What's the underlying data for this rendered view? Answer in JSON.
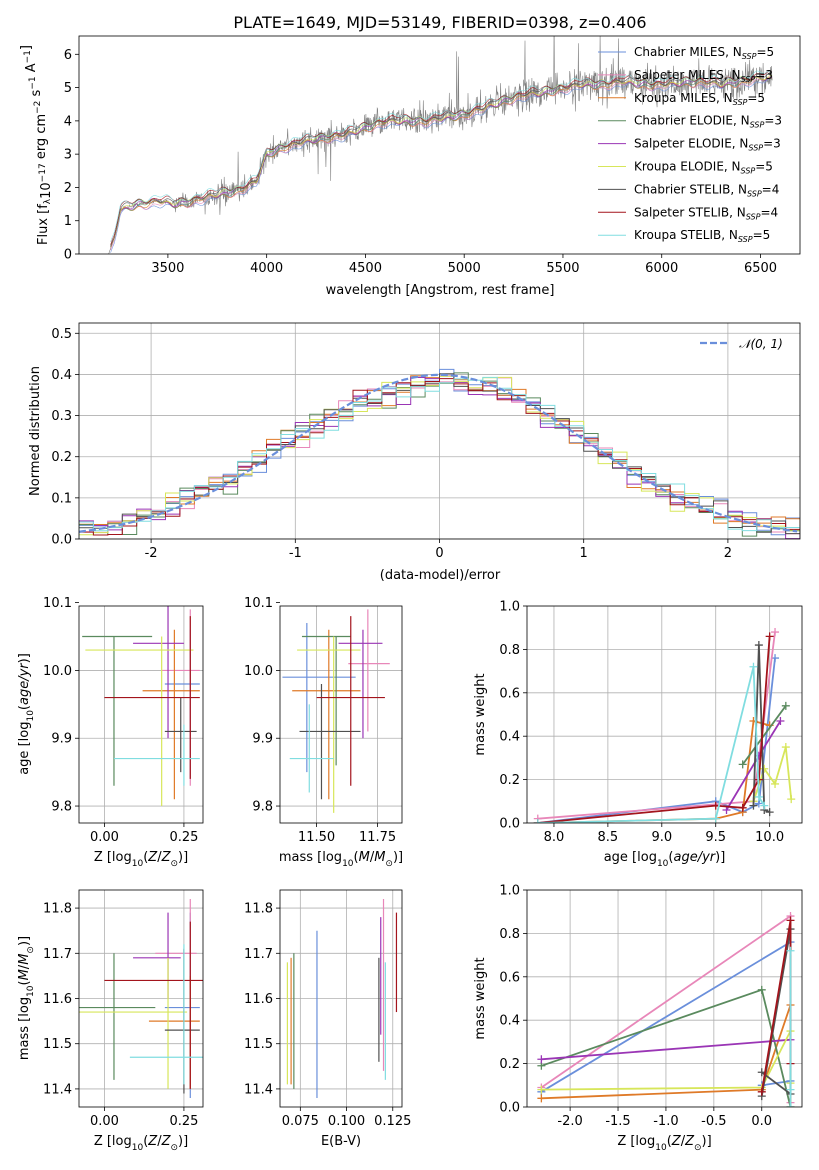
{
  "figure_title": "PLATE=1649, MJD=53149, FIBERID=0398, z=0.406",
  "colors": {
    "Chabrier MILES": "#6a8fdb",
    "Salpeter MILES": "#e887b9",
    "Kroupa MILES": "#df7a28",
    "Chabrier ELODIE": "#5a8a5e",
    "Salpeter ELODIE": "#9a35b5",
    "Kroupa ELODIE": "#d7e65a",
    "Chabrier STELIB": "#505050",
    "Salpeter STELIB": "#a3141c",
    "Kroupa STELIB": "#80dde0",
    "data": "#808080"
  },
  "chart_data": [
    {
      "id": "spectrum",
      "type": "line",
      "title": "PLATE=1649, MJD=53149, FIBERID=0398, z=0.406",
      "xlabel": "wavelength [Angstrom, rest frame]",
      "ylabel": "Flux [f_λ 10^-17 erg cm^-2 s^-1 A^-1]",
      "ylabel_parts": [
        "Flux [f",
        "λ",
        "10",
        "−17",
        " erg cm",
        "−2",
        " s",
        "−1",
        " A",
        "−1",
        "]"
      ],
      "xlim": [
        3050,
        6700
      ],
      "ylim": [
        0,
        6.55
      ],
      "xticks": [
        3500,
        4000,
        4500,
        5000,
        5500,
        6000,
        6500
      ],
      "yticks": [
        0,
        1,
        2,
        3,
        4,
        5,
        6
      ],
      "legend": {
        "position": "top-right",
        "entries": [
          {
            "label": "Chabrier MILES, N",
            "sub": "SSP",
            "tail": "=5"
          },
          {
            "label": "Salpeter MILES, N",
            "sub": "SSP",
            "tail": "=3"
          },
          {
            "label": "Kroupa MILES, N",
            "sub": "SSP",
            "tail": "=5"
          },
          {
            "label": "Chabrier ELODIE, N",
            "sub": "SSP",
            "tail": "=3"
          },
          {
            "label": "Salpeter ELODIE, N",
            "sub": "SSP",
            "tail": "=3"
          },
          {
            "label": "Kroupa ELODIE, N",
            "sub": "SSP",
            "tail": "=5"
          },
          {
            "label": "Chabrier STELIB, N",
            "sub": "SSP",
            "tail": "=4"
          },
          {
            "label": "Salpeter STELIB, N",
            "sub": "SSP",
            "tail": "=4"
          },
          {
            "label": "Kroupa STELIB, N",
            "sub": "SSP",
            "tail": "=5"
          }
        ]
      },
      "continuum": {
        "x": [
          3200,
          3230,
          3260,
          3350,
          3450,
          3550,
          3650,
          3750,
          3850,
          3950,
          4000,
          4100,
          4200,
          4300,
          4400,
          4500,
          4600,
          4700,
          4800,
          4900,
          5000,
          5100,
          5200,
          5300,
          5400,
          5500,
          5600,
          5700,
          5800,
          5900,
          6000,
          6100,
          6200,
          6300,
          6400,
          6500
        ],
        "y": [
          0,
          0.5,
          1.35,
          1.5,
          1.6,
          1.5,
          1.65,
          1.8,
          1.9,
          2.2,
          3.0,
          3.25,
          3.4,
          3.5,
          3.6,
          3.8,
          4.0,
          4.0,
          4.0,
          4.1,
          4.2,
          4.4,
          4.6,
          4.8,
          4.85,
          5.0,
          5.1,
          5.1,
          5.2,
          5.1,
          5.1,
          5.15,
          5.2,
          5.1,
          5.2,
          5.3
        ]
      },
      "data_range": [
        3200,
        6560
      ],
      "noisy_from": 3530
    },
    {
      "id": "residuals",
      "type": "histogram",
      "xlabel": "(data-model)/error",
      "ylabel": "Normed distribution",
      "xlim": [
        -2.5,
        2.5
      ],
      "ylim": [
        0,
        0.525
      ],
      "xticks": [
        -2,
        -1,
        0,
        1,
        2
      ],
      "yticks": [
        0.0,
        0.1,
        0.2,
        0.3,
        0.4,
        0.5
      ],
      "legend": {
        "position": "top-right",
        "label": "N(0, 1)",
        "label_display": "𝒩(0, 1)"
      },
      "gaussian": {
        "mean": 0,
        "sigma": 1
      },
      "bin_width": 0.1,
      "base_profile": {
        "x": [
          -2.5,
          -2.0,
          -1.5,
          -1.0,
          -0.5,
          0.0,
          0.5,
          1.0,
          1.5,
          2.0,
          2.5
        ],
        "y": [
          0.015,
          0.06,
          0.13,
          0.25,
          0.34,
          0.39,
          0.36,
          0.24,
          0.12,
          0.055,
          0.02
        ]
      }
    },
    {
      "id": "z-age",
      "type": "errorbar",
      "xlabel": "Z [log10(Z/Z⊙)]",
      "ylabel": "age [log10(age/yr)]",
      "xlim": [
        -0.08,
        0.31
      ],
      "ylim": [
        9.775,
        10.095
      ],
      "xticks": [
        0.0,
        0.25
      ],
      "yticks": [
        9.8,
        9.9,
        10.0,
        10.1
      ],
      "points": [
        {
          "series": "Chabrier MILES",
          "x": 0.27,
          "y": 9.98,
          "xerr": [
            0.08,
            0.03
          ],
          "yerr": [
            0.14,
            0.08
          ]
        },
        {
          "series": "Salpeter MILES",
          "x": 0.27,
          "y": 10.0,
          "xerr": [
            0.09,
            0.03
          ],
          "yerr": [
            0.17,
            0.09
          ]
        },
        {
          "series": "Kroupa MILES",
          "x": 0.22,
          "y": 9.97,
          "xerr": [
            0.1,
            0.08
          ],
          "yerr": [
            0.16,
            0.09
          ]
        },
        {
          "series": "Chabrier ELODIE",
          "x": 0.03,
          "y": 10.05,
          "xerr": [
            0.1,
            0.12
          ],
          "yerr": [
            0.22,
            0.0
          ]
        },
        {
          "series": "Salpeter ELODIE",
          "x": 0.2,
          "y": 10.04,
          "xerr": [
            0.11,
            0.05
          ],
          "yerr": [
            0.14,
            0.09
          ]
        },
        {
          "series": "Kroupa ELODIE",
          "x": 0.18,
          "y": 10.03,
          "xerr": [
            0.24,
            0.1
          ],
          "yerr": [
            0.23,
            0.02
          ]
        },
        {
          "series": "Chabrier STELIB",
          "x": 0.24,
          "y": 9.91,
          "xerr": [
            0.05,
            0.05
          ],
          "yerr": [
            0.06,
            0.05
          ]
        },
        {
          "series": "Salpeter STELIB",
          "x": 0.27,
          "y": 9.96,
          "xerr": [
            0.27,
            0.03
          ],
          "yerr": [
            0.12,
            0.12
          ]
        },
        {
          "series": "Kroupa STELIB",
          "x": 0.25,
          "y": 9.87,
          "xerr": [
            0.22,
            0.05
          ],
          "yerr": [
            0.04,
            0.05
          ]
        }
      ]
    },
    {
      "id": "mass-age",
      "type": "errorbar",
      "xlabel": "mass [log10(M/M⊙)]",
      "ylabel": "",
      "xlim": [
        11.35,
        11.85
      ],
      "ylim": [
        9.775,
        10.095
      ],
      "xticks": [
        11.5,
        11.75
      ],
      "yticks": [
        9.8,
        9.9,
        10.0,
        10.1
      ],
      "points": [
        {
          "series": "Chabrier MILES",
          "x": 11.46,
          "y": 9.99,
          "xerr": [
            0.1,
            0.2
          ],
          "yerr": [
            0.14,
            0.08
          ]
        },
        {
          "series": "Salpeter MILES",
          "x": 11.71,
          "y": 10.01,
          "xerr": [
            0.08,
            0.09
          ],
          "yerr": [
            0.1,
            0.08
          ]
        },
        {
          "series": "Kroupa MILES",
          "x": 11.55,
          "y": 9.97,
          "xerr": [
            0.15,
            0.13
          ],
          "yerr": [
            0.16,
            0.09
          ]
        },
        {
          "series": "Chabrier ELODIE",
          "x": 11.58,
          "y": 10.05,
          "xerr": [
            0.14,
            0.06
          ],
          "yerr": [
            0.19,
            0.0
          ]
        },
        {
          "series": "Salpeter ELODIE",
          "x": 11.69,
          "y": 10.04,
          "xerr": [
            0.1,
            0.08
          ],
          "yerr": [
            0.14,
            0.02
          ]
        },
        {
          "series": "Kroupa ELODIE",
          "x": 11.57,
          "y": 10.03,
          "xerr": [
            0.15,
            0.11
          ],
          "yerr": [
            0.24,
            0.02
          ]
        },
        {
          "series": "Chabrier STELIB",
          "x": 11.52,
          "y": 9.91,
          "xerr": [
            0.09,
            0.16
          ],
          "yerr": [
            0.1,
            0.07
          ]
        },
        {
          "series": "Salpeter STELIB",
          "x": 11.64,
          "y": 9.96,
          "xerr": [
            0.14,
            0.14
          ],
          "yerr": [
            0.13,
            0.12
          ]
        },
        {
          "series": "Kroupa STELIB",
          "x": 11.47,
          "y": 9.87,
          "xerr": [
            0.08,
            0.1
          ],
          "yerr": [
            0.05,
            0.08
          ]
        }
      ]
    },
    {
      "id": "age-weight",
      "type": "line",
      "xlabel": "age [log10(age/yr)]",
      "ylabel": "mass weight",
      "xlim": [
        7.75,
        10.3
      ],
      "ylim": [
        0,
        1.0
      ],
      "xticks": [
        8.0,
        8.5,
        9.0,
        9.5,
        10.0
      ],
      "yticks": [
        0.0,
        0.2,
        0.4,
        0.6,
        0.8,
        1.0
      ],
      "series": [
        {
          "name": "Chabrier MILES",
          "x": [
            7.85,
            9.5,
            9.75,
            9.9,
            10.05
          ],
          "y": [
            0.0,
            0.1,
            0.05,
            0.09,
            0.76
          ]
        },
        {
          "name": "Salpeter MILES",
          "x": [
            7.85,
            9.85,
            10.05
          ],
          "y": [
            0.02,
            0.1,
            0.88
          ]
        },
        {
          "name": "Kroupa MILES",
          "x": [
            7.85,
            9.5,
            9.75,
            9.85,
            10.0
          ],
          "y": [
            0.0,
            0.02,
            0.05,
            0.47,
            0.45
          ]
        },
        {
          "name": "Chabrier ELODIE",
          "x": [
            9.75,
            10.15
          ],
          "y": [
            0.27,
            0.54
          ]
        },
        {
          "name": "Salpeter ELODIE",
          "x": [
            9.6,
            9.9,
            10.1
          ],
          "y": [
            0.06,
            0.31,
            0.47
          ]
        },
        {
          "name": "Kroupa ELODIE",
          "x": [
            9.85,
            9.95,
            10.05,
            10.15,
            10.2
          ],
          "y": [
            0.1,
            0.25,
            0.18,
            0.35,
            0.11
          ]
        },
        {
          "name": "Chabrier STELIB",
          "x": [
            9.85,
            9.9,
            9.95,
            10.0
          ],
          "y": [
            0.08,
            0.82,
            0.06,
            0.05
          ]
        },
        {
          "name": "Salpeter STELIB",
          "x": [
            7.85,
            9.5,
            9.75,
            9.9,
            10.0
          ],
          "y": [
            0.0,
            0.08,
            0.07,
            0.2,
            0.86
          ]
        },
        {
          "name": "Kroupa STELIB",
          "x": [
            7.85,
            9.5,
            9.85,
            9.9,
            9.95
          ],
          "y": [
            0.0,
            0.02,
            0.72,
            0.12,
            0.08
          ]
        }
      ]
    },
    {
      "id": "z-mass",
      "type": "errorbar",
      "xlabel": "Z [log10(Z/Z⊙)]",
      "ylabel": "mass [log10(M/M⊙)]",
      "xlim": [
        -0.08,
        0.31
      ],
      "ylim": [
        11.36,
        11.84
      ],
      "xticks": [
        0.0,
        0.25
      ],
      "yticks": [
        11.4,
        11.5,
        11.6,
        11.7,
        11.8
      ],
      "points": [
        {
          "series": "Chabrier MILES",
          "x": 0.27,
          "y": 11.58,
          "xerr": [
            0.08,
            0.03
          ],
          "yerr": [
            0.2,
            0.21
          ]
        },
        {
          "series": "Salpeter MILES",
          "x": 0.27,
          "y": 11.7,
          "xerr": [
            0.11,
            0.02
          ],
          "yerr": [
            0.3,
            0.12
          ]
        },
        {
          "series": "Kroupa MILES",
          "x": 0.27,
          "y": 11.55,
          "xerr": [
            0.13,
            0.03
          ],
          "yerr": [
            0.15,
            0.1
          ]
        },
        {
          "series": "Chabrier ELODIE",
          "x": 0.03,
          "y": 11.58,
          "xerr": [
            0.11,
            0.13
          ],
          "yerr": [
            0.16,
            0.12
          ]
        },
        {
          "series": "Salpeter ELODIE",
          "x": 0.2,
          "y": 11.69,
          "xerr": [
            0.11,
            0.04
          ],
          "yerr": [
            0.09,
            0.1
          ]
        },
        {
          "series": "Kroupa ELODIE",
          "x": 0.2,
          "y": 11.57,
          "xerr": [
            0.28,
            0.06
          ],
          "yerr": [
            0.17,
            0.12
          ]
        },
        {
          "series": "Chabrier STELIB",
          "x": 0.25,
          "y": 11.53,
          "xerr": [
            0.06,
            0.05
          ],
          "yerr": [
            0.14,
            0.18
          ]
        },
        {
          "series": "Salpeter STELIB",
          "x": 0.27,
          "y": 11.64,
          "xerr": [
            0.27,
            0.04
          ],
          "yerr": [
            0.24,
            0.13
          ]
        },
        {
          "series": "Kroupa STELIB",
          "x": 0.25,
          "y": 11.47,
          "xerr": [
            0.17,
            0.06
          ],
          "yerr": [
            0.06,
            0.25
          ]
        }
      ]
    },
    {
      "id": "ebv-mass",
      "type": "errorbar",
      "xlabel": "E(B-V)",
      "ylabel": "",
      "xlim": [
        0.064,
        0.13
      ],
      "ylim": [
        11.36,
        11.84
      ],
      "xticks": [
        0.075,
        0.1,
        0.125
      ],
      "yticks": [
        11.4,
        11.5,
        11.6,
        11.7,
        11.8
      ],
      "points": [
        {
          "series": "Chabrier MILES",
          "x": 0.084,
          "y": 11.56,
          "yerr": [
            0.18,
            0.19
          ]
        },
        {
          "series": "Salpeter MILES",
          "x": 0.12,
          "y": 11.62,
          "yerr": [
            0.18,
            0.2
          ]
        },
        {
          "series": "Kroupa MILES",
          "x": 0.07,
          "y": 11.55,
          "yerr": [
            0.14,
            0.14
          ]
        },
        {
          "series": "Chabrier ELODIE",
          "x": 0.0715,
          "y": 11.55,
          "yerr": [
            0.15,
            0.15
          ]
        },
        {
          "series": "Salpeter ELODIE",
          "x": 0.1185,
          "y": 11.65,
          "yerr": [
            0.13,
            0.13
          ]
        },
        {
          "series": "Kroupa ELODIE",
          "x": 0.068,
          "y": 11.54,
          "yerr": [
            0.13,
            0.14
          ]
        },
        {
          "series": "Chabrier STELIB",
          "x": 0.1175,
          "y": 11.55,
          "yerr": [
            0.09,
            0.14
          ]
        },
        {
          "series": "Salpeter STELIB",
          "x": 0.127,
          "y": 11.68,
          "yerr": [
            0.11,
            0.11
          ]
        },
        {
          "series": "Kroupa STELIB",
          "x": 0.121,
          "y": 11.55,
          "yerr": [
            0.13,
            0.13
          ]
        }
      ]
    },
    {
      "id": "z-weight",
      "type": "line",
      "xlabel": "Z [log10(Z/Z⊙)]",
      "ylabel": "mass weight",
      "xlim": [
        -2.45,
        0.42
      ],
      "ylim": [
        0,
        1.0
      ],
      "xticks": [
        -2.0,
        -1.5,
        -1.0,
        -0.5,
        0.0
      ],
      "yticks": [
        0.0,
        0.2,
        0.4,
        0.6,
        0.8,
        1.0
      ],
      "series": [
        {
          "name": "Chabrier MILES",
          "x": [
            -2.3,
            0.3,
            0.3,
            0.0
          ],
          "y": [
            0.07,
            0.76,
            0.12,
            0.1
          ]
        },
        {
          "name": "Salpeter MILES",
          "x": [
            -2.3,
            0.3,
            0.3
          ],
          "y": [
            0.09,
            0.88,
            0.02
          ]
        },
        {
          "name": "Kroupa MILES",
          "x": [
            -2.3,
            0.0,
            0.3,
            0.3
          ],
          "y": [
            0.04,
            0.08,
            0.47,
            0.0
          ]
        },
        {
          "name": "Chabrier ELODIE",
          "x": [
            -2.3,
            0.0,
            0.3
          ],
          "y": [
            0.19,
            0.54,
            0.0
          ]
        },
        {
          "name": "Salpeter ELODIE",
          "x": [
            -2.3,
            0.3
          ],
          "y": [
            0.22,
            0.31
          ]
        },
        {
          "name": "Kroupa ELODIE",
          "x": [
            -2.3,
            0.0,
            0.3,
            0.3
          ],
          "y": [
            0.08,
            0.09,
            0.35,
            0.11
          ]
        },
        {
          "name": "Chabrier STELIB",
          "x": [
            0.0,
            0.3,
            0.3,
            0.0
          ],
          "y": [
            0.05,
            0.82,
            0.06,
            0.16
          ]
        },
        {
          "name": "Salpeter STELIB",
          "x": [
            0.0,
            0.3,
            0.3
          ],
          "y": [
            0.07,
            0.86,
            0.2
          ]
        },
        {
          "name": "Kroupa STELIB",
          "x": [
            0.3,
            0.3,
            0.3
          ],
          "y": [
            0.72,
            0.08,
            0.0
          ]
        }
      ]
    }
  ]
}
